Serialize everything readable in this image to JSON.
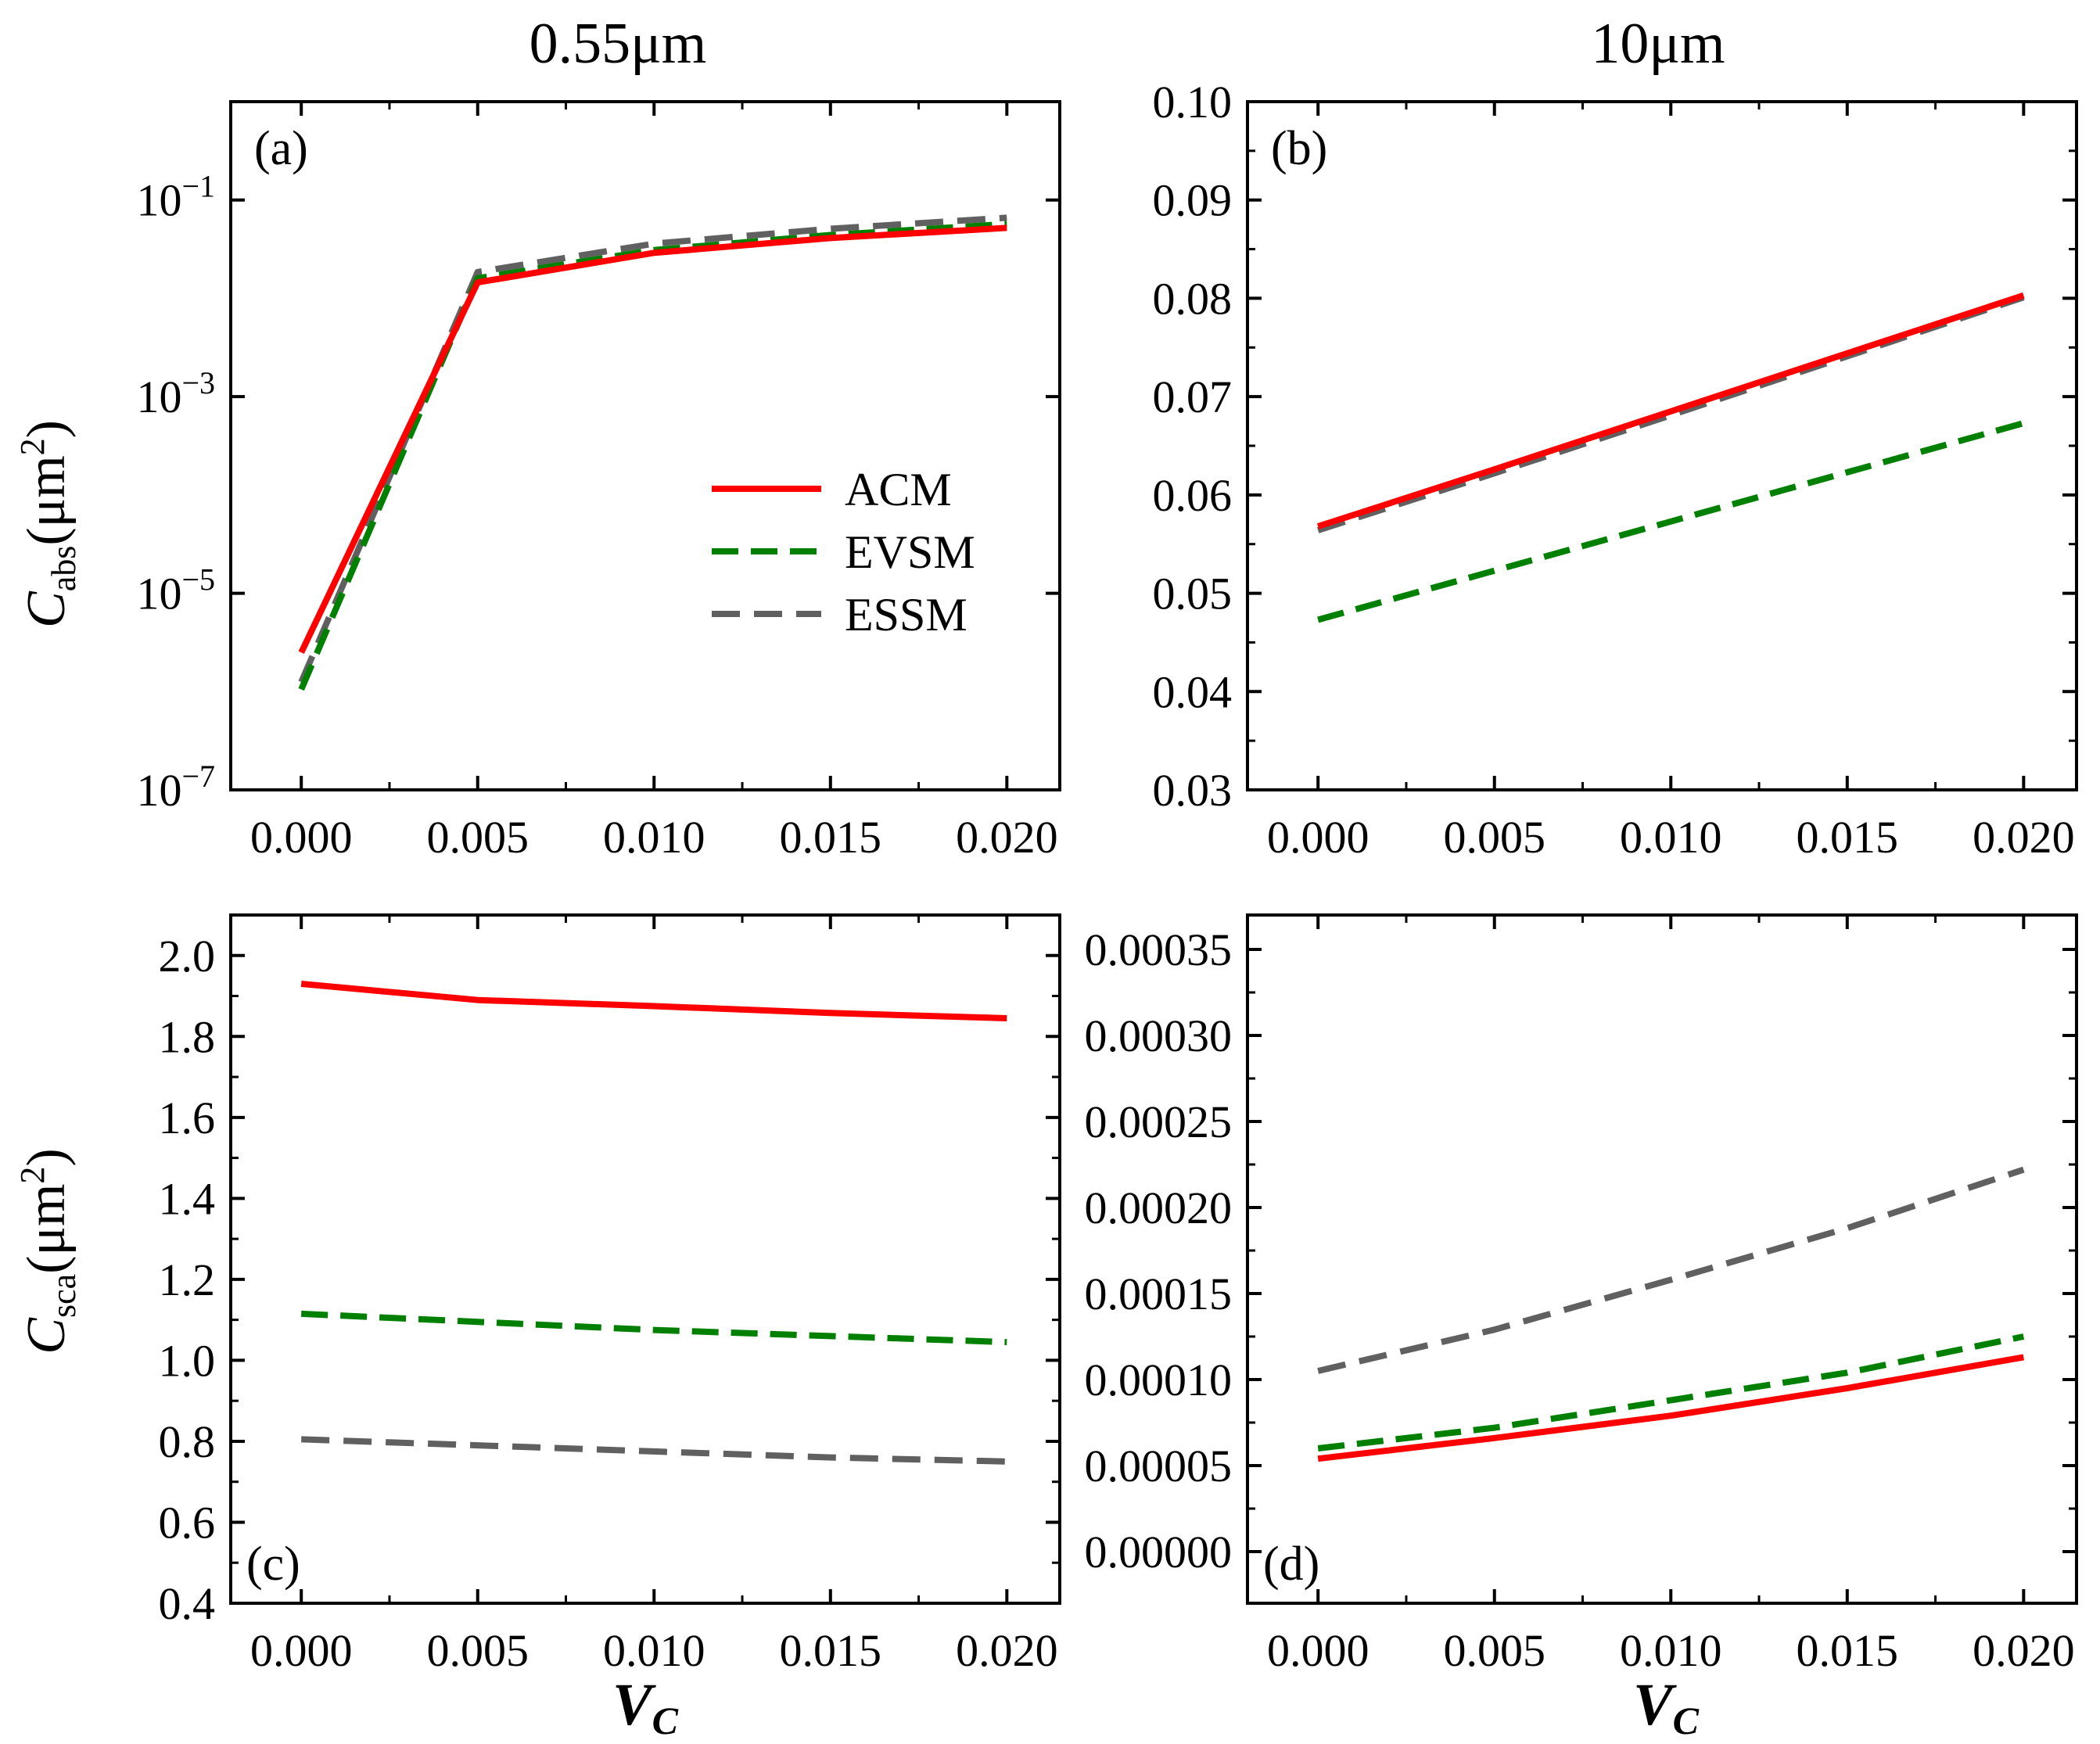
{
  "figure": {
    "col_titles": [
      "0.55μm",
      "10μm"
    ],
    "ylabel_top": {
      "main": "C",
      "sub": "abs",
      "unit": "(μm",
      "sup": "2",
      "close": ")"
    },
    "ylabel_bottom": {
      "main": "C",
      "sub": "sca",
      "unit": "(μm",
      "sup": "2",
      "close": ")"
    },
    "xlabel": {
      "main": "V",
      "sub": "C"
    }
  },
  "legend": [
    {
      "name": "ACM",
      "color": "#ff0000",
      "style": "solid"
    },
    {
      "name": "EVSM",
      "color": "#008000",
      "style": "dash"
    },
    {
      "name": "ESSM",
      "color": "#606060",
      "style": "dash"
    }
  ],
  "chart_data": [
    {
      "id": "a",
      "type": "line",
      "panel_label": "(a)",
      "yscale": "log",
      "xlim": [
        -0.002,
        0.0215
      ],
      "ylim": [
        1e-07,
        1
      ],
      "xticks": [
        0.0,
        0.005,
        0.01,
        0.015,
        0.02
      ],
      "xtick_labels": [
        "0.000",
        "0.005",
        "0.010",
        "0.015",
        "0.020"
      ],
      "yticks": [
        1e-07,
        1e-05,
        0.001,
        0.1
      ],
      "ytick_labels": [
        {
          "base": "10",
          "exp": "−7"
        },
        {
          "base": "10",
          "exp": "−5"
        },
        {
          "base": "10",
          "exp": "−3"
        },
        {
          "base": "10",
          "exp": "−1"
        }
      ],
      "x": [
        0.0,
        0.005,
        0.01,
        0.015,
        0.02
      ],
      "series": [
        {
          "name": "ACM",
          "values": [
            2.5e-06,
            0.0145,
            0.029,
            0.041,
            0.052
          ]
        },
        {
          "name": "EVSM",
          "values": [
            1.05e-06,
            0.016,
            0.031,
            0.044,
            0.057
          ]
        },
        {
          "name": "ESSM",
          "values": [
            1.25e-06,
            0.0185,
            0.036,
            0.051,
            0.066
          ]
        }
      ],
      "legend_position": "center-right"
    },
    {
      "id": "b",
      "type": "line",
      "panel_label": "(b)",
      "yscale": "linear",
      "xlim": [
        -0.002,
        0.0215
      ],
      "ylim": [
        0.03,
        0.1
      ],
      "xticks": [
        0.0,
        0.005,
        0.01,
        0.015,
        0.02
      ],
      "xtick_labels": [
        "0.000",
        "0.005",
        "0.010",
        "0.015",
        "0.020"
      ],
      "yticks": [
        0.03,
        0.04,
        0.05,
        0.06,
        0.07,
        0.08,
        0.09,
        0.1
      ],
      "ytick_labels": [
        "0.03",
        "0.04",
        "0.05",
        "0.06",
        "0.07",
        "0.08",
        "0.09",
        "0.10"
      ],
      "x": [
        0.0,
        0.005,
        0.01,
        0.015,
        0.02
      ],
      "series": [
        {
          "name": "ACM",
          "values": [
            0.0568,
            0.0626,
            0.0685,
            0.0744,
            0.0803
          ]
        },
        {
          "name": "EVSM",
          "values": [
            0.0473,
            0.0523,
            0.0573,
            0.0623,
            0.0673
          ]
        },
        {
          "name": "ESSM",
          "values": [
            0.0564,
            0.0622,
            0.0681,
            0.0741,
            0.0801
          ]
        }
      ]
    },
    {
      "id": "c",
      "type": "line",
      "panel_label": "(c)",
      "yscale": "linear",
      "xlim": [
        -0.002,
        0.0215
      ],
      "ylim": [
        0.4,
        2.1
      ],
      "xticks": [
        0.0,
        0.005,
        0.01,
        0.015,
        0.02
      ],
      "xtick_labels": [
        "0.000",
        "0.005",
        "0.010",
        "0.015",
        "0.020"
      ],
      "yticks": [
        0.4,
        0.6,
        0.8,
        1.0,
        1.2,
        1.4,
        1.6,
        1.8,
        2.0
      ],
      "ytick_labels": [
        "0.4",
        "0.6",
        "0.8",
        "1.0",
        "1.2",
        "1.4",
        "1.6",
        "1.8",
        "2.0"
      ],
      "x": [
        0.0,
        0.005,
        0.01,
        0.015,
        0.02
      ],
      "series": [
        {
          "name": "ACM",
          "values": [
            1.93,
            1.89,
            1.875,
            1.858,
            1.845
          ]
        },
        {
          "name": "EVSM",
          "values": [
            1.115,
            1.095,
            1.075,
            1.06,
            1.045
          ]
        },
        {
          "name": "ESSM",
          "values": [
            0.805,
            0.79,
            0.775,
            0.76,
            0.75
          ]
        }
      ]
    },
    {
      "id": "d",
      "type": "line",
      "panel_label": "(d)",
      "yscale": "linear",
      "xlim": [
        -0.002,
        0.0215
      ],
      "ylim": [
        -3e-05,
        0.00037
      ],
      "xticks": [
        0.0,
        0.005,
        0.01,
        0.015,
        0.02
      ],
      "xtick_labels": [
        "0.000",
        "0.005",
        "0.010",
        "0.015",
        "0.020"
      ],
      "yticks": [
        0.0,
        5e-05,
        0.0001,
        0.00015,
        0.0002,
        0.00025,
        0.0003,
        0.00035
      ],
      "ytick_labels": [
        "0.00000",
        "0.00005",
        "0.00010",
        "0.00015",
        "0.00020",
        "0.00025",
        "0.00030",
        "0.00035"
      ],
      "x": [
        0.0,
        0.005,
        0.01,
        0.015,
        0.02
      ],
      "series": [
        {
          "name": "ACM",
          "values": [
            5.4e-05,
            6.6e-05,
            7.9e-05,
            9.5e-05,
            0.000113
          ]
        },
        {
          "name": "EVSM",
          "values": [
            6e-05,
            7.2e-05,
            8.8e-05,
            0.000104,
            0.000125
          ]
        },
        {
          "name": "ESSM",
          "values": [
            0.000105,
            0.000129,
            0.000158,
            0.000188,
            0.000222
          ]
        }
      ]
    }
  ]
}
